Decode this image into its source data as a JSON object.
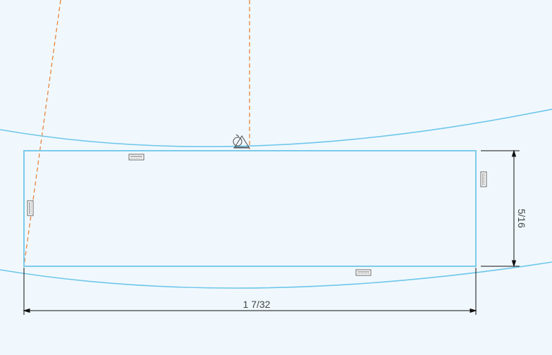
{
  "sketch": {
    "colors": {
      "background": "#f0f8fd",
      "profile": "#6ec6ea",
      "construction": "#e8843c",
      "dimension": "#111111"
    },
    "dimensions": {
      "width_label": "1 7/32",
      "height_label": "5/16"
    }
  }
}
